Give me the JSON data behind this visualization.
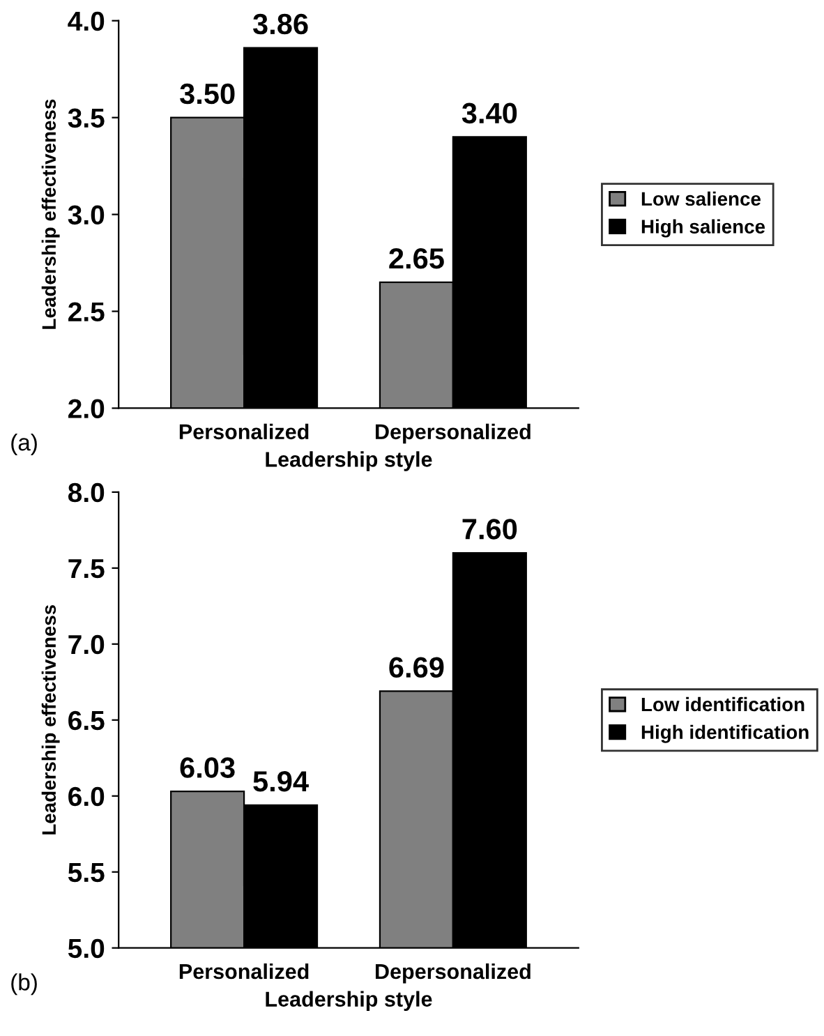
{
  "chart_data": [
    {
      "type": "bar",
      "xlabel": "Leadership style",
      "ylabel": "Leadership effectiveness",
      "categories": [
        "Personalized",
        "Depersonalized"
      ],
      "series": [
        {
          "name": "Low salience",
          "color": "#808080",
          "values": [
            3.5,
            2.65
          ],
          "value_labels": [
            "3.50",
            "2.65"
          ]
        },
        {
          "name": "High salience",
          "color": "#000000",
          "values": [
            3.86,
            3.4
          ],
          "value_labels": [
            "3.86",
            "3.40"
          ]
        }
      ],
      "ylim": [
        2,
        4
      ],
      "yticks": [
        {
          "value": 2,
          "label": "2.0"
        },
        {
          "value": 2.5,
          "label": "2.5"
        },
        {
          "value": 3,
          "label": "3.0"
        },
        {
          "value": 3.5,
          "label": "3.5"
        },
        {
          "value": 4,
          "label": "4.0"
        }
      ],
      "grid": false,
      "legend": "right",
      "annotations": [
        "(a)"
      ]
    },
    {
      "type": "bar",
      "xlabel": "Leadership style",
      "ylabel": "Leadership effectiveness",
      "categories": [
        "Personalized",
        "Depersonalized"
      ],
      "series": [
        {
          "name": "Low identification",
          "color": "#808080",
          "values": [
            6.03,
            6.69
          ],
          "value_labels": [
            "6.03",
            "6.69"
          ]
        },
        {
          "name": "High identification",
          "color": "#000000",
          "values": [
            5.94,
            7.6
          ],
          "value_labels": [
            "5.94",
            "7.60"
          ]
        }
      ],
      "ylim": [
        5,
        8
      ],
      "yticks": [
        {
          "value": 5,
          "label": "5.0"
        },
        {
          "value": 5.5,
          "label": "5.5"
        },
        {
          "value": 6,
          "label": "6.0"
        },
        {
          "value": 6.5,
          "label": "6.5"
        },
        {
          "value": 7,
          "label": "7.0"
        },
        {
          "value": 7.5,
          "label": "7.5"
        },
        {
          "value": 8,
          "label": "8.0"
        }
      ],
      "grid": false,
      "legend": "right",
      "annotations": [
        "(b)"
      ]
    }
  ]
}
